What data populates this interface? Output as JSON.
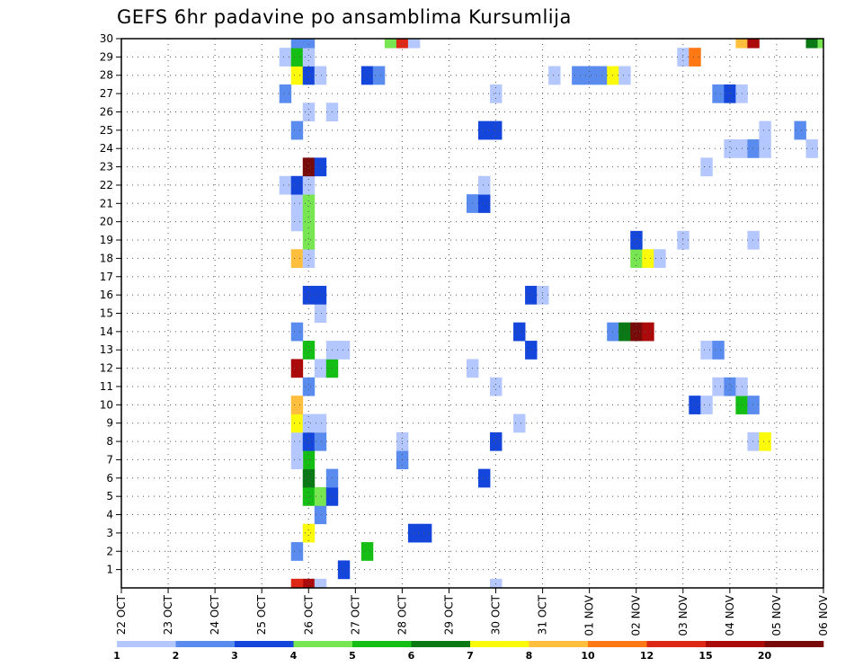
{
  "chart_data": {
    "type": "heatmap",
    "title": "GEFS 6hr padavine po ansamblima Kursumlija",
    "xlabel": "",
    "ylabel": "",
    "x_start": "22 OCT 00Z",
    "step_hours": 6,
    "n_steps": 61,
    "x_tick_labels": [
      "22 OCT",
      "23 OCT",
      "24 OCT",
      "25 OCT",
      "26 OCT",
      "27 OCT",
      "28 OCT",
      "29 OCT",
      "30 OCT",
      "31 OCT",
      "01 NOV",
      "02 NOV",
      "03 NOV",
      "04 NOV",
      "05 NOV",
      "06 NOV"
    ],
    "members": [
      0,
      1,
      2,
      3,
      4,
      5,
      6,
      7,
      8,
      9,
      10,
      11,
      12,
      13,
      14,
      15,
      16,
      17,
      18,
      19,
      20,
      21,
      22,
      23,
      24,
      25,
      26,
      27,
      28,
      29,
      30
    ],
    "y_tick_labels": [
      "1",
      "2",
      "3",
      "4",
      "5",
      "6",
      "7",
      "8",
      "9",
      "10",
      "11",
      "12",
      "13",
      "14",
      "15",
      "16",
      "17",
      "18",
      "19",
      "20",
      "21",
      "22",
      "23",
      "24",
      "25",
      "26",
      "27",
      "28",
      "29",
      "30"
    ],
    "grid": true,
    "legend": "bottom",
    "levels": [
      1,
      2,
      3,
      4,
      5,
      6,
      7,
      8,
      10,
      12,
      15,
      20
    ],
    "level_labels": [
      "1",
      "2",
      "3",
      "4",
      "5",
      "6",
      "7",
      "8",
      "10",
      "12",
      "15",
      "20"
    ],
    "colors": [
      "#b4c8ff",
      "#5a8cf0",
      "#1446dc",
      "#78e650",
      "#14be14",
      "#0a7814",
      "#fafa0a",
      "#ffbe3c",
      "#ff7814",
      "#dc2814",
      "#aa0a0a",
      "#780a0a"
    ],
    "cells_note": "each cell: [member, time_step_index, color_class_index]",
    "cells": [
      [
        0,
        16,
        10
      ],
      [
        0,
        15,
        9
      ],
      [
        0,
        17,
        0
      ],
      [
        0,
        32,
        0
      ],
      [
        1,
        19,
        2
      ],
      [
        2,
        21,
        4
      ],
      [
        2,
        15,
        1
      ],
      [
        3,
        25,
        2
      ],
      [
        3,
        26,
        2
      ],
      [
        3,
        16,
        6
      ],
      [
        4,
        17,
        1
      ],
      [
        5,
        16,
        4
      ],
      [
        5,
        17,
        3
      ],
      [
        5,
        18,
        2
      ],
      [
        6,
        16,
        5
      ],
      [
        6,
        18,
        1
      ],
      [
        6,
        31,
        2
      ],
      [
        7,
        16,
        4
      ],
      [
        7,
        15,
        0
      ],
      [
        7,
        24,
        1
      ],
      [
        8,
        15,
        0
      ],
      [
        8,
        16,
        2
      ],
      [
        8,
        17,
        1
      ],
      [
        8,
        24,
        0
      ],
      [
        8,
        32,
        2
      ],
      [
        8,
        54,
        0
      ],
      [
        8,
        55,
        6
      ],
      [
        9,
        15,
        6
      ],
      [
        9,
        16,
        0
      ],
      [
        9,
        17,
        0
      ],
      [
        9,
        34,
        0
      ],
      [
        10,
        15,
        7
      ],
      [
        10,
        49,
        2
      ],
      [
        10,
        50,
        0
      ],
      [
        10,
        53,
        4
      ],
      [
        10,
        54,
        1
      ],
      [
        11,
        16,
        1
      ],
      [
        11,
        32,
        0
      ],
      [
        11,
        51,
        0
      ],
      [
        11,
        52,
        1
      ],
      [
        11,
        53,
        0
      ],
      [
        12,
        15,
        10
      ],
      [
        12,
        17,
        0
      ],
      [
        12,
        18,
        4
      ],
      [
        12,
        30,
        0
      ],
      [
        13,
        16,
        4
      ],
      [
        13,
        18,
        0
      ],
      [
        13,
        19,
        0
      ],
      [
        13,
        35,
        2
      ],
      [
        13,
        50,
        0
      ],
      [
        13,
        51,
        1
      ],
      [
        14,
        15,
        1
      ],
      [
        14,
        34,
        2
      ],
      [
        14,
        42,
        1
      ],
      [
        14,
        43,
        5
      ],
      [
        14,
        44,
        11
      ],
      [
        14,
        45,
        10
      ],
      [
        15,
        17,
        0
      ],
      [
        16,
        16,
        2
      ],
      [
        16,
        17,
        2
      ],
      [
        16,
        35,
        2
      ],
      [
        16,
        36,
        0
      ],
      [
        18,
        15,
        7
      ],
      [
        18,
        16,
        0
      ],
      [
        18,
        44,
        3
      ],
      [
        18,
        45,
        6
      ],
      [
        18,
        46,
        0
      ],
      [
        19,
        16,
        3
      ],
      [
        19,
        44,
        2
      ],
      [
        19,
        48,
        0
      ],
      [
        19,
        54,
        0
      ],
      [
        20,
        15,
        0
      ],
      [
        20,
        16,
        3
      ],
      [
        21,
        15,
        0
      ],
      [
        21,
        16,
        3
      ],
      [
        21,
        30,
        1
      ],
      [
        21,
        31,
        2
      ],
      [
        22,
        14,
        0
      ],
      [
        22,
        15,
        2
      ],
      [
        22,
        16,
        0
      ],
      [
        22,
        31,
        0
      ],
      [
        23,
        16,
        11
      ],
      [
        23,
        17,
        2
      ],
      [
        23,
        50,
        0
      ],
      [
        24,
        52,
        0
      ],
      [
        24,
        53,
        0
      ],
      [
        24,
        54,
        1
      ],
      [
        24,
        55,
        0
      ],
      [
        24,
        59,
        0
      ],
      [
        25,
        15,
        1
      ],
      [
        25,
        31,
        2
      ],
      [
        25,
        32,
        2
      ],
      [
        25,
        55,
        0
      ],
      [
        25,
        58,
        1
      ],
      [
        26,
        16,
        0
      ],
      [
        26,
        18,
        0
      ],
      [
        27,
        14,
        1
      ],
      [
        27,
        32,
        0
      ],
      [
        27,
        51,
        1
      ],
      [
        27,
        52,
        2
      ],
      [
        27,
        53,
        0
      ],
      [
        28,
        15,
        6
      ],
      [
        28,
        16,
        2
      ],
      [
        28,
        17,
        0
      ],
      [
        28,
        21,
        2
      ],
      [
        28,
        22,
        1
      ],
      [
        28,
        37,
        0
      ],
      [
        28,
        39,
        1
      ],
      [
        28,
        40,
        1
      ],
      [
        28,
        41,
        1
      ],
      [
        28,
        42,
        6
      ],
      [
        28,
        43,
        0
      ],
      [
        29,
        14,
        0
      ],
      [
        29,
        15,
        4
      ],
      [
        29,
        16,
        0
      ],
      [
        29,
        48,
        0
      ],
      [
        29,
        49,
        8
      ],
      [
        30,
        15,
        1
      ],
      [
        30,
        16,
        1
      ],
      [
        30,
        23,
        3
      ],
      [
        30,
        24,
        9
      ],
      [
        30,
        25,
        0
      ],
      [
        30,
        53,
        7
      ],
      [
        30,
        54,
        10
      ],
      [
        30,
        59,
        5
      ],
      [
        30,
        60,
        3
      ]
    ]
  }
}
